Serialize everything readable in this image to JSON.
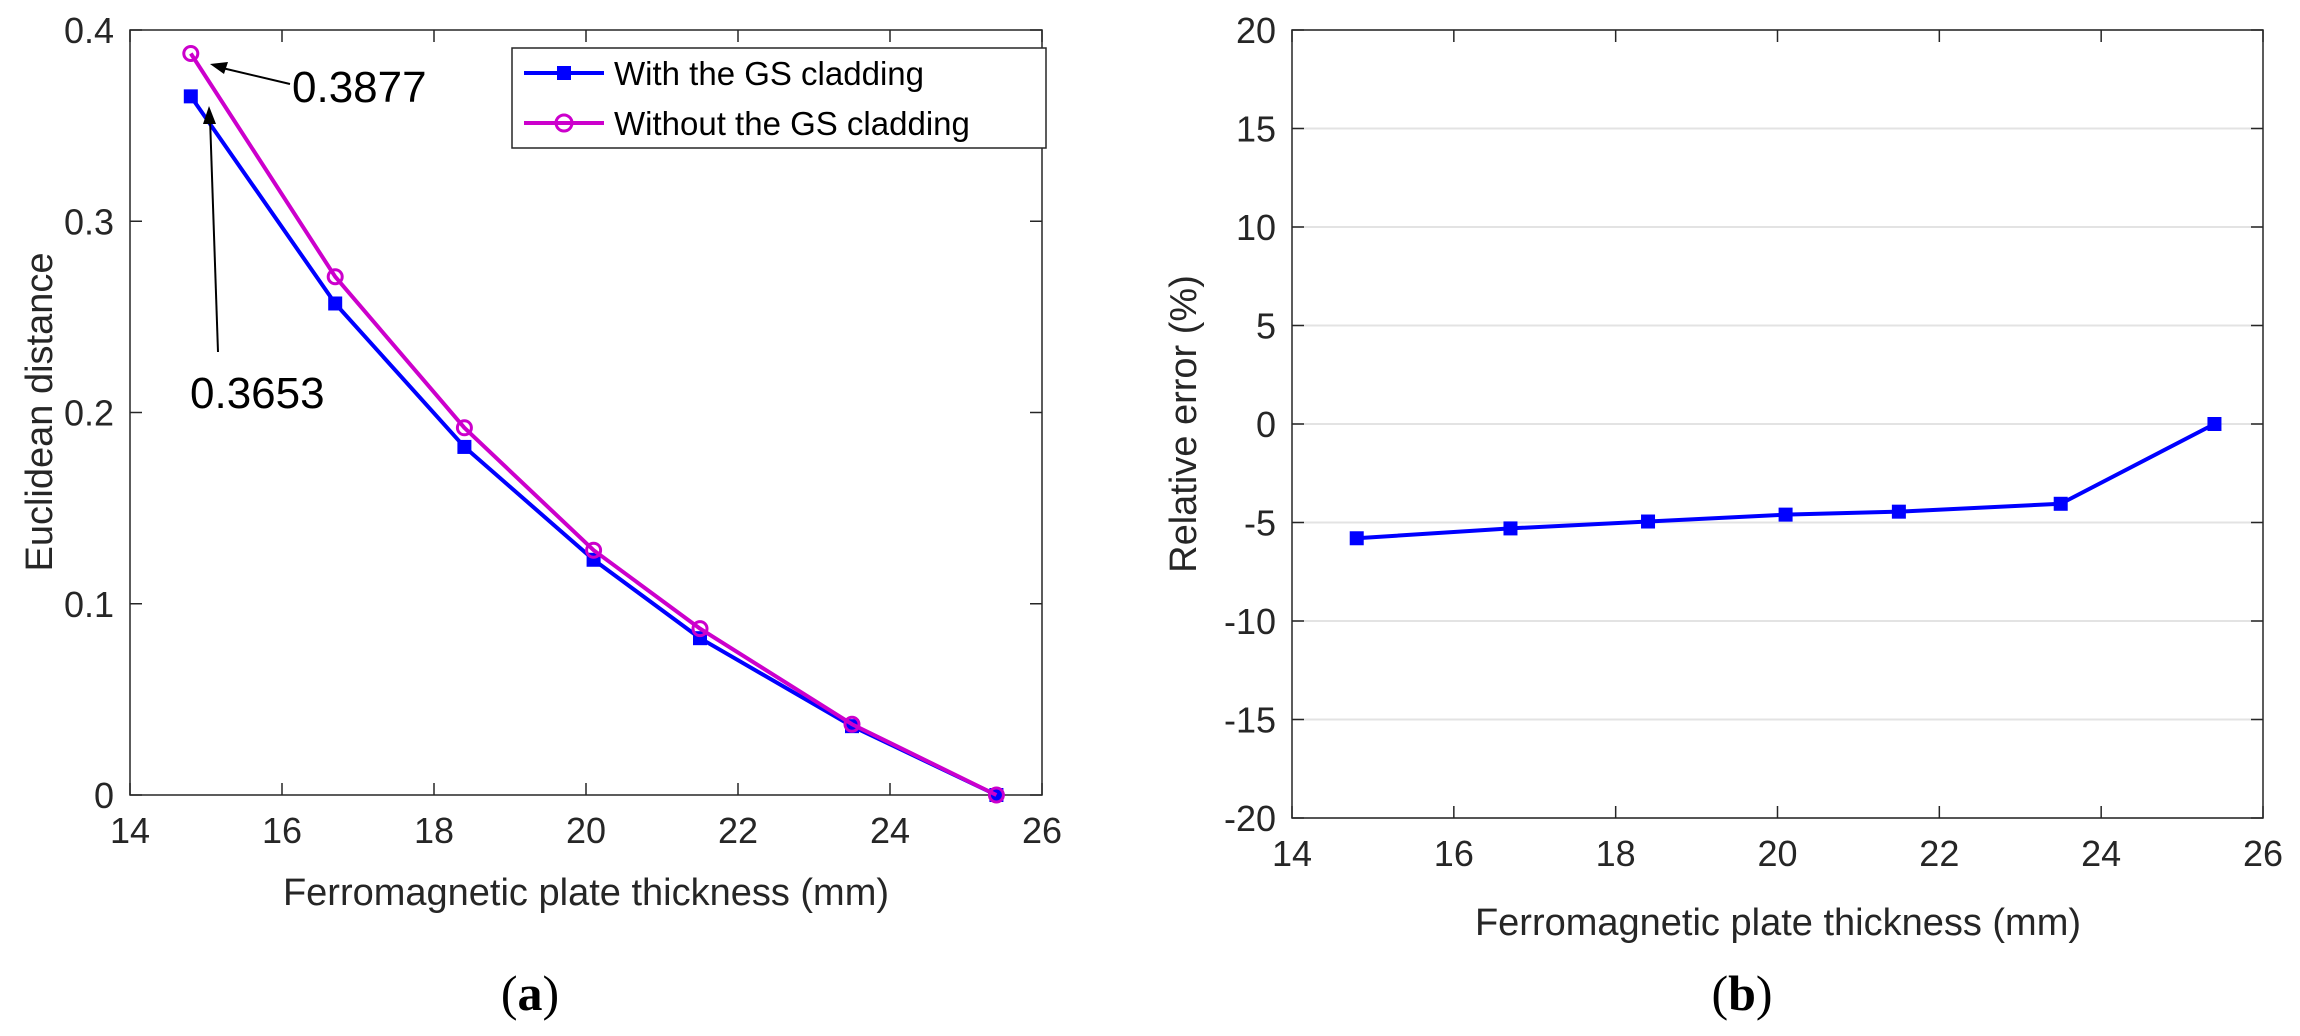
{
  "chart_data": [
    {
      "type": "line",
      "panel_label": {
        "open": "(",
        "letter": "a",
        "close": ")"
      },
      "xlabel": "Ferromagnetic plate thickness (mm)",
      "ylabel": "Euclidean distance",
      "xlim": [
        14,
        26
      ],
      "ylim": [
        0,
        0.4
      ],
      "xticks": [
        "14",
        "16",
        "18",
        "20",
        "22",
        "24",
        "26"
      ],
      "yticks": [
        "0",
        "0.1",
        "0.2",
        "0.3",
        "0.4"
      ],
      "grid": false,
      "legend_position": "top-right",
      "x": [
        14.8,
        16.7,
        18.4,
        20.1,
        21.5,
        23.5,
        25.4
      ],
      "series": [
        {
          "name": "With the GS cladding",
          "color": "#0000ff",
          "marker": "square",
          "values": [
            0.3653,
            0.257,
            0.182,
            0.123,
            0.082,
            0.036,
            0.0
          ]
        },
        {
          "name": "Without the GS cladding",
          "color": "#cc00cc",
          "marker": "circle",
          "values": [
            0.3877,
            0.271,
            0.192,
            0.128,
            0.087,
            0.037,
            0.0
          ]
        }
      ],
      "annotations": [
        {
          "text": "0.3877",
          "target_x": 14.8,
          "target_y": 0.3877
        },
        {
          "text": "0.3653",
          "target_x": 14.8,
          "target_y": 0.3653
        }
      ]
    },
    {
      "type": "line",
      "panel_label": {
        "open": "(",
        "letter": "b",
        "close": ")"
      },
      "xlabel": "Ferromagnetic plate thickness (mm)",
      "ylabel": "Relative error  (%)",
      "xlim": [
        14,
        26
      ],
      "ylim": [
        -20,
        20
      ],
      "xticks": [
        "14",
        "16",
        "18",
        "20",
        "22",
        "24",
        "26"
      ],
      "yticks": [
        "-20",
        "-15",
        "-10",
        "-5",
        "0",
        "5",
        "10",
        "15",
        "20"
      ],
      "grid": true,
      "x": [
        14.8,
        16.7,
        18.4,
        20.1,
        21.5,
        23.5,
        25.4
      ],
      "series": [
        {
          "name": "Relative error",
          "color": "#0000ff",
          "marker": "square",
          "values": [
            -5.8,
            -5.3,
            -4.95,
            -4.6,
            -4.45,
            -4.05,
            0.0
          ]
        }
      ]
    }
  ]
}
